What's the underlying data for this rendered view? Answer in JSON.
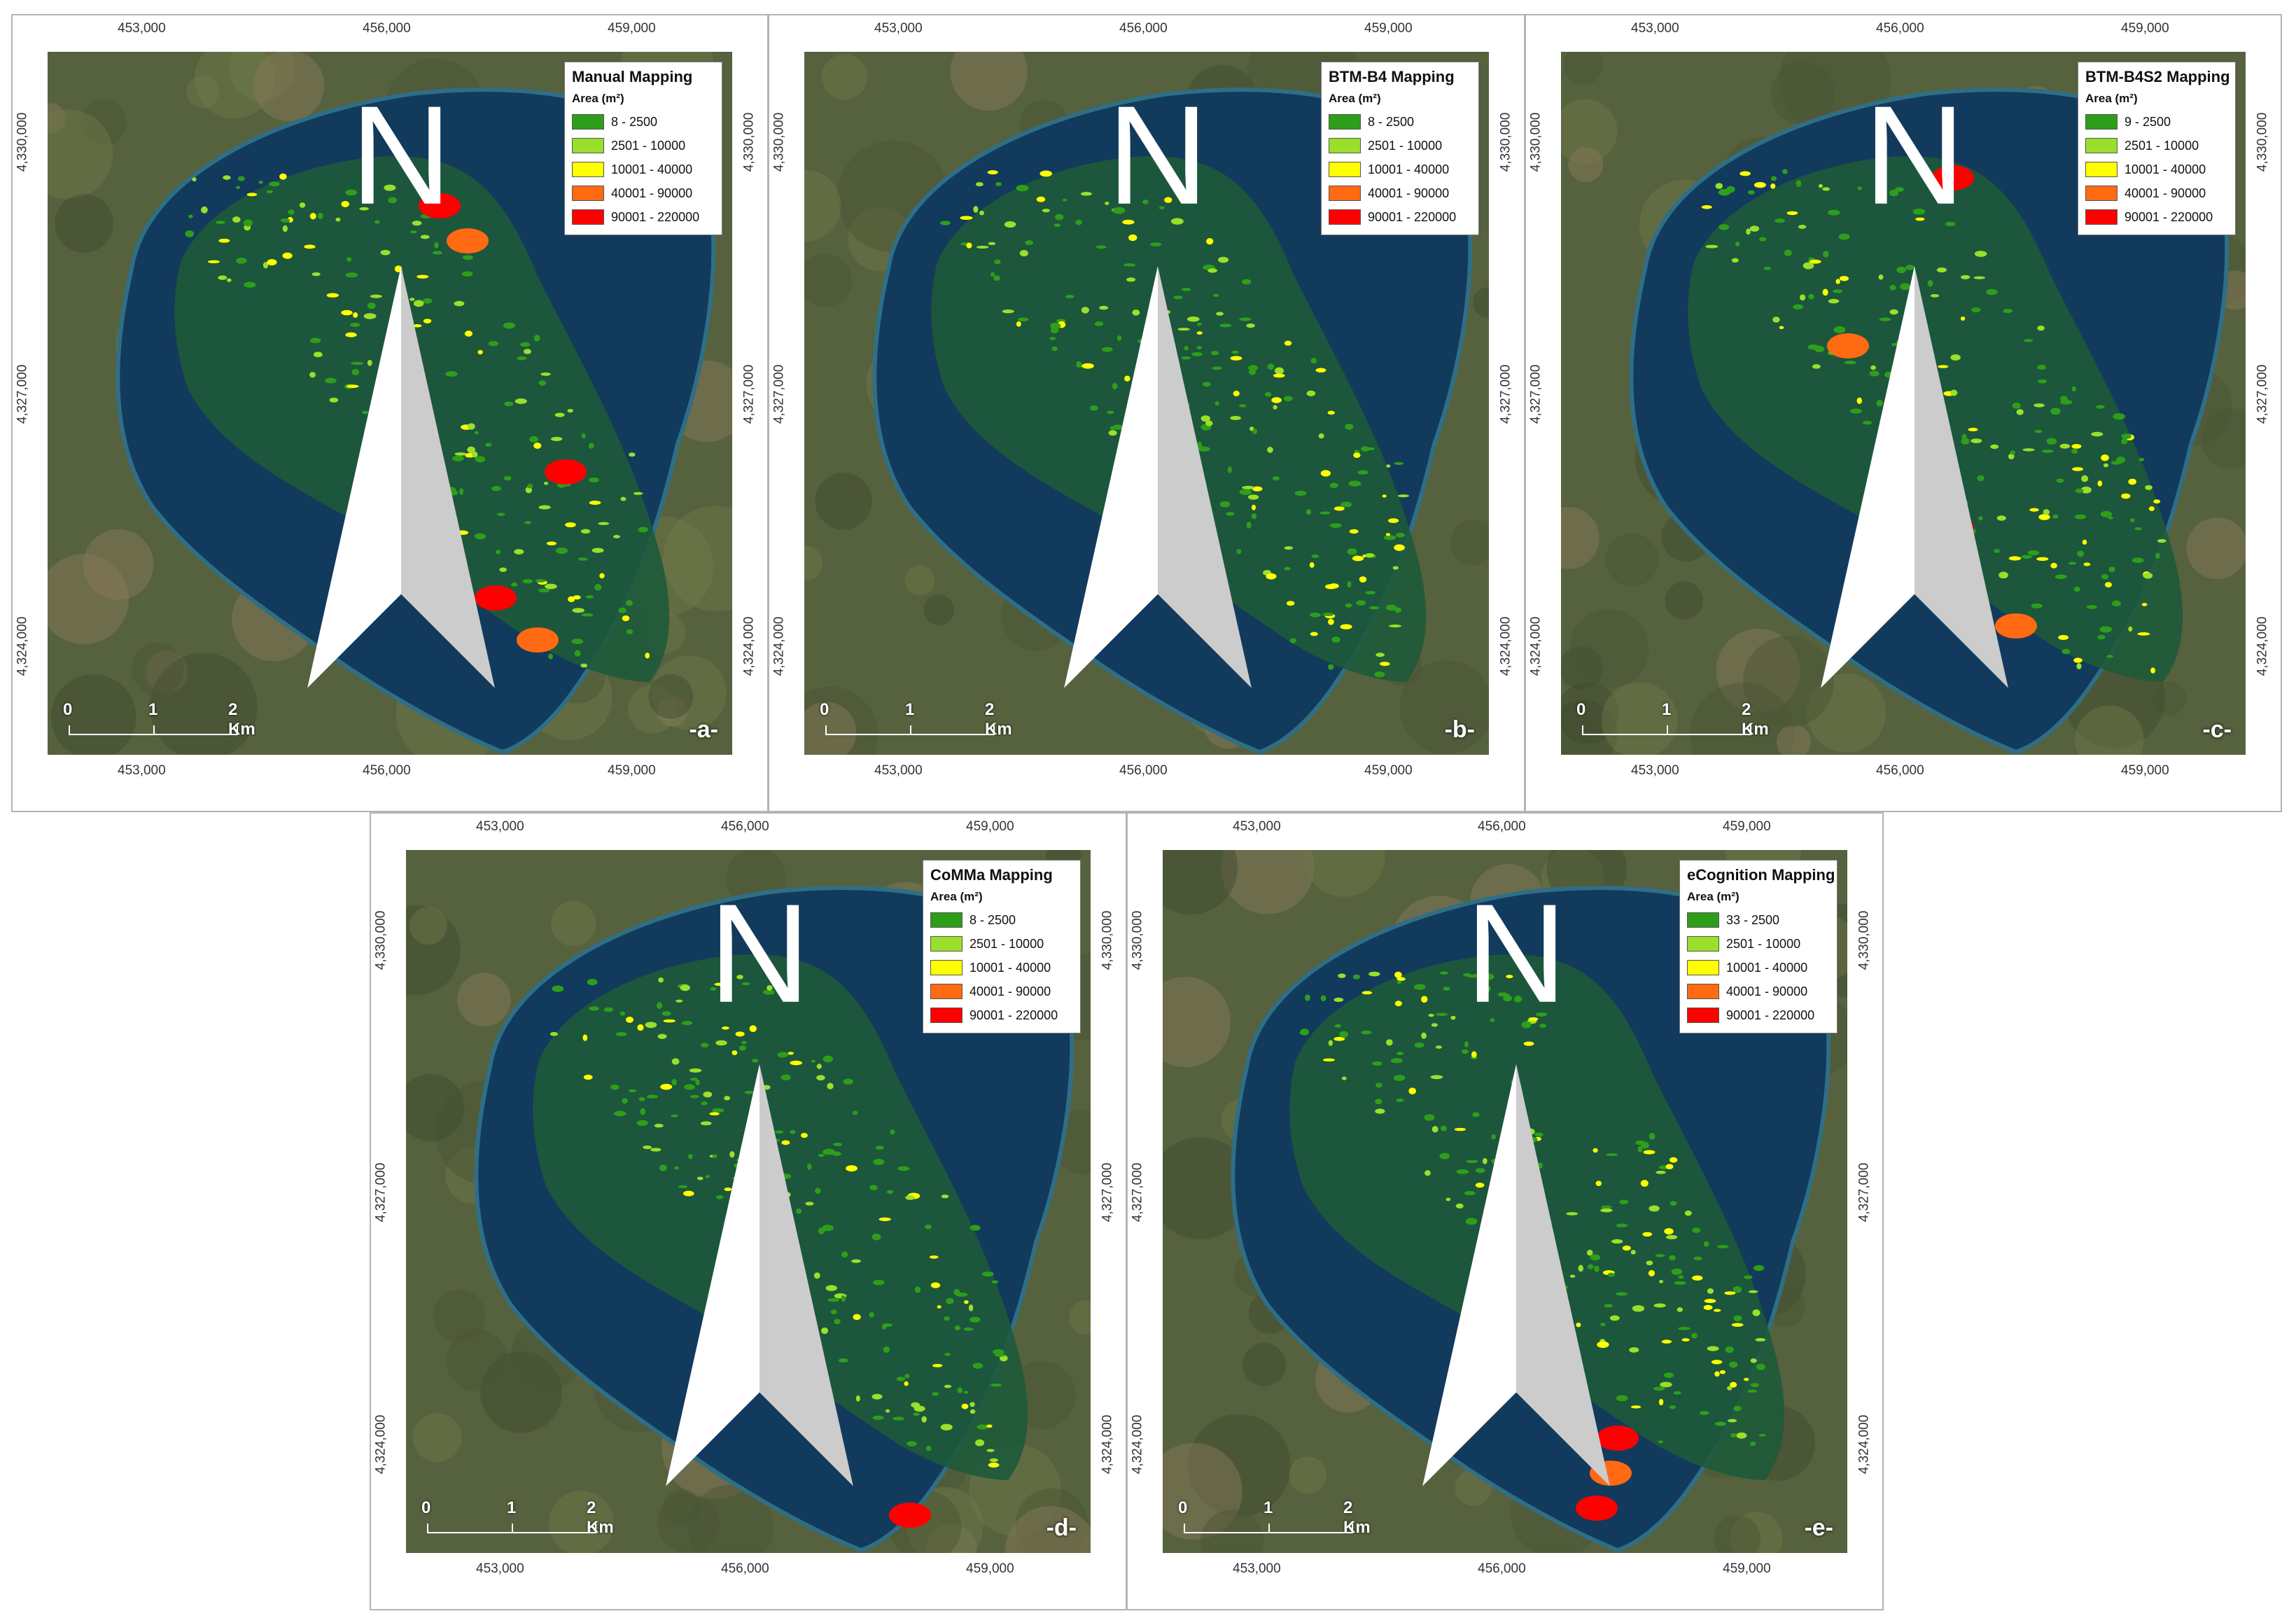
{
  "axis_ticks": {
    "easting": [
      "453,000",
      "456,000",
      "459,000"
    ],
    "northing": [
      "4,324,000",
      "4,327,000",
      "4,330,000"
    ]
  },
  "legend_subtitle": "Area (m²)",
  "colors": {
    "class1": "#2e9e1a",
    "class2": "#9adf2a",
    "class3": "#ffff00",
    "class4": "#ff6a13",
    "class5": "#ff0000",
    "water": "#123a5c",
    "land": "#56613e"
  },
  "north_arrow": {
    "label": "N",
    "icon": "north-arrow-icon"
  },
  "scale_bar": {
    "zero": "0",
    "one": "1",
    "two": "2 Km"
  },
  "panels": [
    {
      "title": "Manual Mapping",
      "label": "-a-",
      "classes": [
        "8 - 2500",
        "2501 - 10000",
        "10001 - 40000",
        "40001 - 90000",
        "90001 - 220000"
      ]
    },
    {
      "title": "BTM-B4 Mapping",
      "label": "-b-",
      "classes": [
        "8 - 2500",
        "2501 - 10000",
        "10001 - 40000",
        "40001 - 90000",
        "90001 - 220000"
      ]
    },
    {
      "title": "BTM-B4S2 Mapping",
      "label": "-c-",
      "classes": [
        "9 - 2500",
        "2501 - 10000",
        "10001 - 40000",
        "40001 - 90000",
        "90001 - 220000"
      ]
    },
    {
      "title": "CoMMa Mapping",
      "label": "-d-",
      "classes": [
        "8 - 2500",
        "2501 - 10000",
        "10001 - 40000",
        "40001 - 90000",
        "90001 - 220000"
      ]
    },
    {
      "title": "eCognition Mapping",
      "label": "-e-",
      "classes": [
        "33 - 2500",
        "2501 - 10000",
        "10001 - 40000",
        "40001 - 90000",
        "90001 - 220000"
      ]
    }
  ]
}
